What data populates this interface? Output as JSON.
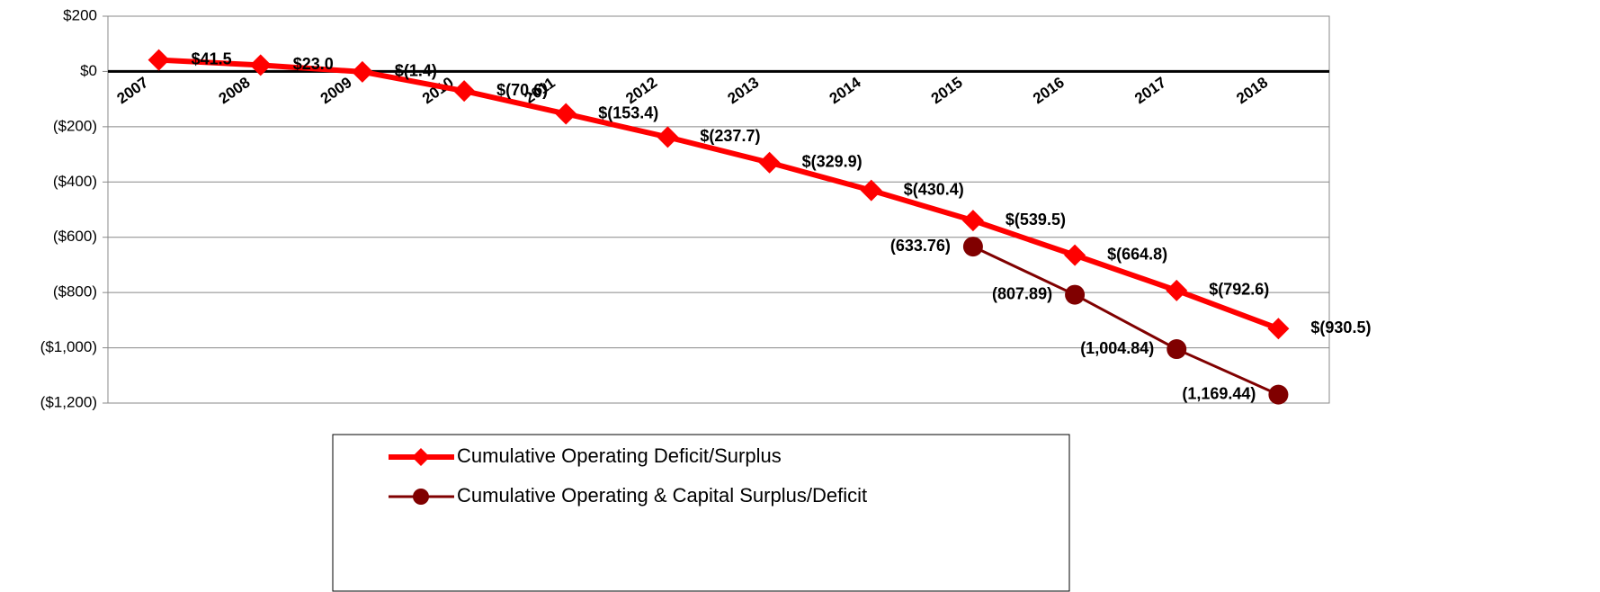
{
  "chart_data": {
    "type": "line",
    "categories": [
      "2007",
      "2008",
      "2009",
      "2010",
      "2011",
      "2012",
      "2013",
      "2014",
      "2015",
      "2016",
      "2017",
      "2018"
    ],
    "series": [
      {
        "name": "Cumulative Operating Deficit/Surplus",
        "color": "#ff0000",
        "marker": "diamond",
        "values": [
          41.5,
          23.0,
          -1.4,
          -70.6,
          -153.4,
          -237.7,
          -329.9,
          -430.4,
          -539.5,
          -664.8,
          -792.6,
          -930.5
        ],
        "value_labels": [
          "$41.5",
          "$23.0",
          "$(1.4)",
          "$(70.6)",
          "$(153.4)",
          "$(237.7)",
          "$(329.9)",
          "$(430.4)",
          "$(539.5)",
          "$(664.8)",
          "$(792.6)",
          "$(930.5)"
        ]
      },
      {
        "name": "Cumulative Operating & Capital Surplus/Deficit",
        "color": "#800000",
        "marker": "circle",
        "values": [
          null,
          null,
          null,
          null,
          null,
          null,
          null,
          null,
          -633.76,
          -807.89,
          -1004.84,
          -1169.44
        ],
        "value_labels": [
          null,
          null,
          null,
          null,
          null,
          null,
          null,
          null,
          "(633.76)",
          "(807.89)",
          "(1,004.84)",
          "(1,169.44)"
        ]
      }
    ],
    "ylim": [
      -1200,
      200
    ],
    "yticks": [
      {
        "value": 200,
        "label": "$200"
      },
      {
        "value": 0,
        "label": "$0"
      },
      {
        "value": -200,
        "label": "($200)"
      },
      {
        "value": -400,
        "label": "($400)"
      },
      {
        "value": -600,
        "label": "($600)"
      },
      {
        "value": -800,
        "label": "($800)"
      },
      {
        "value": -1000,
        "label": "($1,000)"
      },
      {
        "value": -1200,
        "label": "($1,200)"
      }
    ],
    "grid": true,
    "legend": "bottom"
  }
}
